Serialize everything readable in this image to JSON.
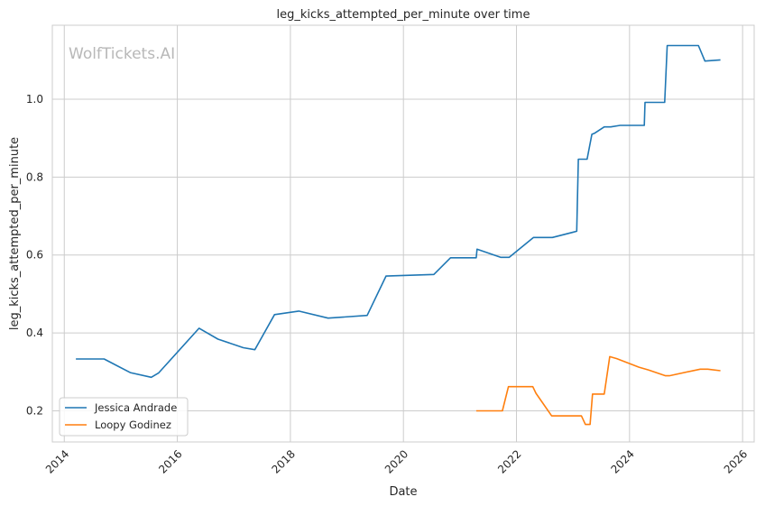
{
  "chart_data": {
    "type": "line",
    "title": "leg_kicks_attempted_per_minute over time",
    "xlabel": "Date",
    "ylabel": "leg_kicks_attempted_per_minute",
    "watermark": "WolfTickets.AI",
    "x_ticks": [
      "2014",
      "2016",
      "2018",
      "2020",
      "2022",
      "2024",
      "2026"
    ],
    "y_ticks": [
      "0.2",
      "0.4",
      "0.6",
      "0.8",
      "1.0"
    ],
    "xlim": [
      "2013-10-15",
      "2026-03-15"
    ],
    "ylim": [
      0.12,
      1.19
    ],
    "grid": true,
    "legend_position": "lower-left",
    "series": [
      {
        "name": "Jessica Andrade",
        "color": "#1f77b4",
        "x": [
          "2014-03-15",
          "2014-09-15",
          "2015-03-01",
          "2015-07-15",
          "2015-09-01",
          "2016-05-20",
          "2016-09-20",
          "2017-03-01",
          "2017-05-15",
          "2017-09-20",
          "2018-02-25",
          "2018-09-01",
          "2019-05-10",
          "2019-09-10",
          "2020-07-15",
          "2020-11-01",
          "2021-04-15",
          "2021-04-20",
          "2021-09-20",
          "2021-11-15",
          "2022-04-20",
          "2022-08-20",
          "2023-01-25",
          "2023-02-05",
          "2023-04-01",
          "2023-05-01",
          "2023-05-20",
          "2023-07-20",
          "2023-09-01",
          "2023-11-01",
          "2024-04-05",
          "2024-04-10",
          "2024-08-15",
          "2024-09-01",
          "2025-03-20",
          "2025-05-01",
          "2025-08-10"
        ],
        "y": [
          0.333,
          0.333,
          0.298,
          0.286,
          0.297,
          0.412,
          0.384,
          0.362,
          0.357,
          0.447,
          0.456,
          0.438,
          0.445,
          0.546,
          0.55,
          0.593,
          0.593,
          0.615,
          0.594,
          0.594,
          0.645,
          0.645,
          0.661,
          0.846,
          0.846,
          0.91,
          0.913,
          0.929,
          0.929,
          0.933,
          0.933,
          0.992,
          0.992,
          1.138,
          1.138,
          1.098,
          1.101
        ]
      },
      {
        "name": "Loopy Godinez",
        "color": "#ff7f0e",
        "x": [
          "2021-04-15",
          "2021-10-01",
          "2021-11-10",
          "2022-04-15",
          "2022-05-05",
          "2022-08-15",
          "2023-02-25",
          "2023-03-20",
          "2023-04-20",
          "2023-05-05",
          "2023-07-20",
          "2023-08-25",
          "2023-10-10",
          "2024-03-01",
          "2024-05-01",
          "2024-08-20",
          "2024-09-15",
          "2025-04-01",
          "2025-05-20",
          "2025-08-10"
        ],
        "y": [
          0.2,
          0.2,
          0.262,
          0.262,
          0.245,
          0.187,
          0.187,
          0.165,
          0.165,
          0.243,
          0.243,
          0.339,
          0.334,
          0.312,
          0.305,
          0.29,
          0.29,
          0.307,
          0.307,
          0.303
        ]
      }
    ]
  }
}
